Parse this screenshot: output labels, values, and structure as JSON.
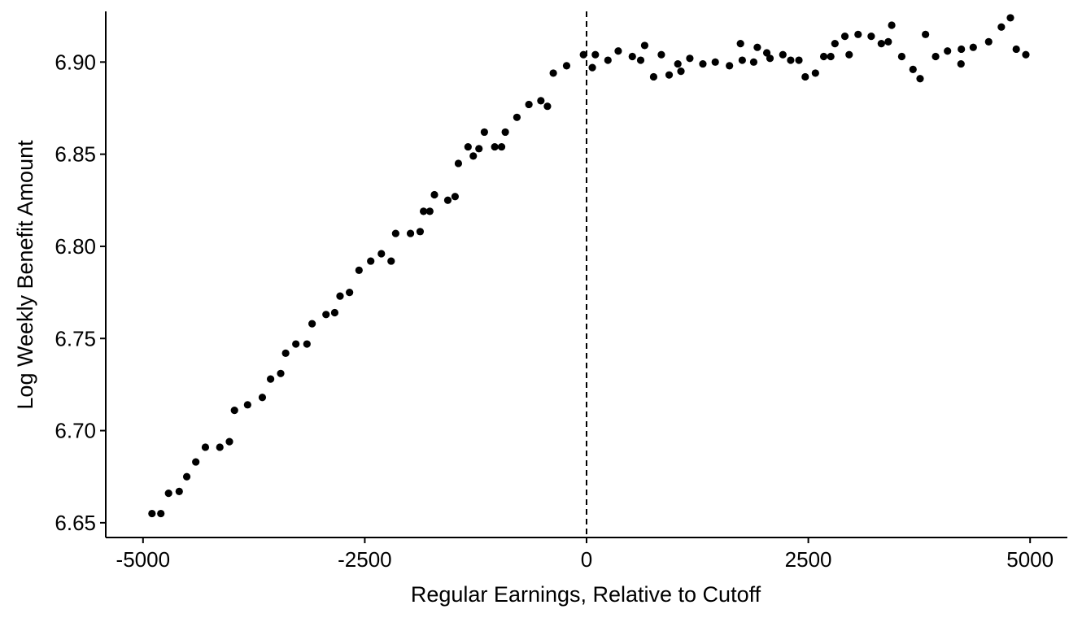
{
  "chart_data": {
    "type": "scatter",
    "xlabel": "Regular Earnings, Relative to Cutoff",
    "ylabel": "Log Weekly Benefit Amount",
    "xlim": [
      -5420,
      5420
    ],
    "ylim": [
      6.642,
      6.9275
    ],
    "xticks": [
      -5000,
      -2500,
      0,
      2500,
      5000
    ],
    "xtick_labels": [
      "-5000",
      "-2500",
      "0",
      "2500",
      "5000"
    ],
    "yticks": [
      6.65,
      6.7,
      6.75,
      6.8,
      6.85,
      6.9
    ],
    "ytick_labels": [
      "6.65",
      "6.70",
      "6.75",
      "6.80",
      "6.85",
      "6.90"
    ],
    "cutoff_x": 0,
    "grid": false,
    "point_color": "#000000",
    "points": [
      [
        -4899,
        6.655
      ],
      [
        -4799,
        6.655
      ],
      [
        -4712,
        6.666
      ],
      [
        -4592,
        6.667
      ],
      [
        -4507,
        6.675
      ],
      [
        -4405,
        6.683
      ],
      [
        -4297,
        6.691
      ],
      [
        -4134,
        6.691
      ],
      [
        -4026,
        6.694
      ],
      [
        -3969,
        6.711
      ],
      [
        -3821,
        6.714
      ],
      [
        -3655,
        6.718
      ],
      [
        -3562,
        6.728
      ],
      [
        -3448,
        6.731
      ],
      [
        -3392,
        6.742
      ],
      [
        -3277,
        6.747
      ],
      [
        -3152,
        6.747
      ],
      [
        -3094,
        6.758
      ],
      [
        -2937,
        6.763
      ],
      [
        -2839,
        6.764
      ],
      [
        -2779,
        6.773
      ],
      [
        -2672,
        6.775
      ],
      [
        -2565,
        6.787
      ],
      [
        -2433,
        6.792
      ],
      [
        -2313,
        6.796
      ],
      [
        -2203,
        6.792
      ],
      [
        -2152,
        6.807
      ],
      [
        -1985,
        6.807
      ],
      [
        -1876,
        6.808
      ],
      [
        -1838,
        6.819
      ],
      [
        -1767,
        6.819
      ],
      [
        -1715,
        6.828
      ],
      [
        -1564,
        6.825
      ],
      [
        -1482,
        6.827
      ],
      [
        -1445,
        6.845
      ],
      [
        -1336,
        6.854
      ],
      [
        -1277,
        6.849
      ],
      [
        -1213,
        6.853
      ],
      [
        -1152,
        6.862
      ],
      [
        -1035,
        6.854
      ],
      [
        -958,
        6.854
      ],
      [
        -916,
        6.862
      ],
      [
        -785,
        6.87
      ],
      [
        -650,
        6.877
      ],
      [
        -515,
        6.879
      ],
      [
        -441,
        6.876
      ],
      [
        -375,
        6.894
      ],
      [
        -225,
        6.898
      ],
      [
        -35,
        6.904
      ],
      [
        65,
        6.897
      ],
      [
        99,
        6.904
      ],
      [
        241,
        6.901
      ],
      [
        357,
        6.906
      ],
      [
        516,
        6.903
      ],
      [
        610,
        6.901
      ],
      [
        655,
        6.909
      ],
      [
        756,
        6.892
      ],
      [
        843,
        6.904
      ],
      [
        931,
        6.893
      ],
      [
        1029,
        6.899
      ],
      [
        1064,
        6.895
      ],
      [
        1164,
        6.902
      ],
      [
        1311,
        6.899
      ],
      [
        1451,
        6.9
      ],
      [
        1611,
        6.898
      ],
      [
        1735,
        6.91
      ],
      [
        1755,
        6.901
      ],
      [
        1884,
        6.9
      ],
      [
        1925,
        6.908
      ],
      [
        2032,
        6.905
      ],
      [
        2068,
        6.902
      ],
      [
        2213,
        6.904
      ],
      [
        2301,
        6.901
      ],
      [
        2394,
        6.901
      ],
      [
        2465,
        6.892
      ],
      [
        2580,
        6.894
      ],
      [
        2674,
        6.903
      ],
      [
        2753,
        6.903
      ],
      [
        2800,
        6.91
      ],
      [
        2912,
        6.914
      ],
      [
        2960,
        6.904
      ],
      [
        3061,
        6.915
      ],
      [
        3209,
        6.914
      ],
      [
        3323,
        6.91
      ],
      [
        3401,
        6.911
      ],
      [
        3440,
        6.92
      ],
      [
        3553,
        6.903
      ],
      [
        3680,
        6.896
      ],
      [
        3760,
        6.891
      ],
      [
        3821,
        6.915
      ],
      [
        3935,
        6.903
      ],
      [
        4069,
        6.906
      ],
      [
        4221,
        6.899
      ],
      [
        4225,
        6.907
      ],
      [
        4359,
        6.908
      ],
      [
        4533,
        6.911
      ],
      [
        4676,
        6.919
      ],
      [
        4778,
        6.924
      ],
      [
        4844,
        6.907
      ],
      [
        4952,
        6.904
      ]
    ]
  }
}
